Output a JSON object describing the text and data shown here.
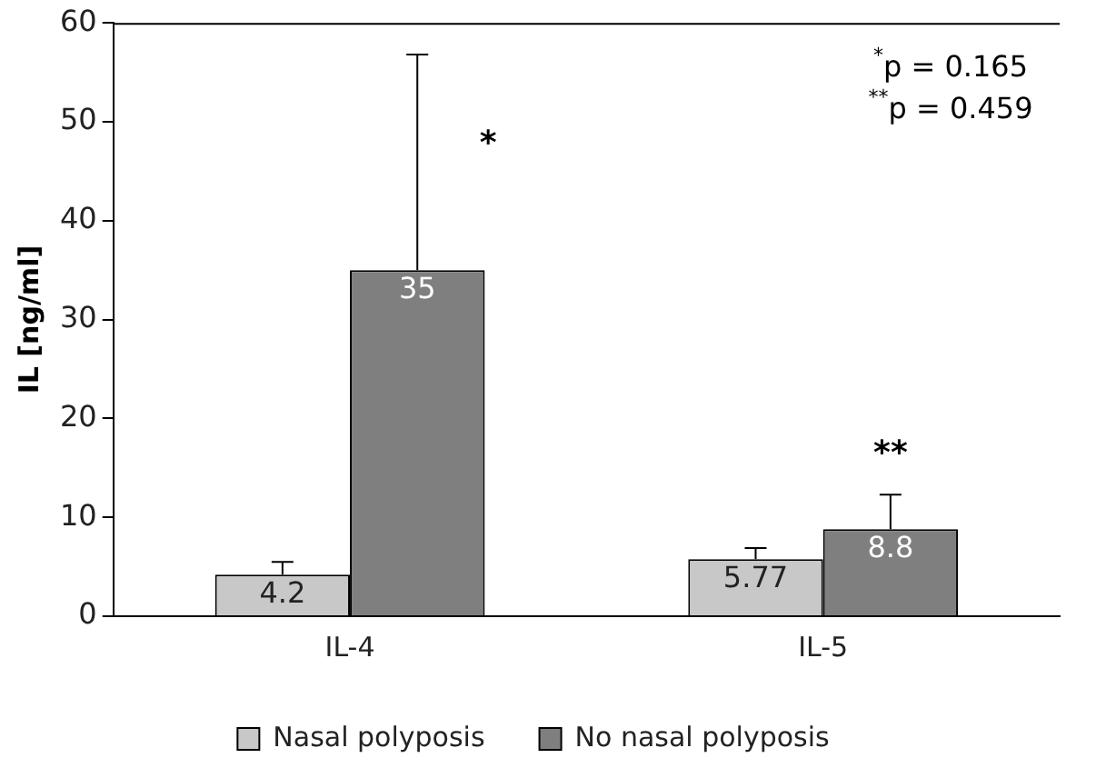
{
  "chart_data": {
    "type": "bar",
    "ylabel": "IL [ng/ml]",
    "categories": [
      "IL-4",
      "IL-5"
    ],
    "series": [
      {
        "name": "Nasal polyposis",
        "color": "#c8c8c8",
        "values": [
          4.2,
          5.77
        ],
        "errors": [
          [
            4.2,
            5.5
          ],
          [
            5.77,
            6.9
          ]
        ]
      },
      {
        "name": "No nasal polyposis",
        "color": "#7f7f7f",
        "values": [
          35,
          8.8
        ],
        "errors": [
          [
            35,
            56.8
          ],
          [
            8.8,
            12.3
          ]
        ]
      }
    ],
    "ylim": [
      0,
      60
    ],
    "yticks": [
      0,
      10,
      20,
      30,
      40,
      50,
      60
    ],
    "data_labels": true,
    "legend": "bottom",
    "grid": false,
    "annotations": [
      "*",
      "**",
      "$^{*}$p = 0.165",
      "$^{**}$p = 0.459"
    ]
  }
}
